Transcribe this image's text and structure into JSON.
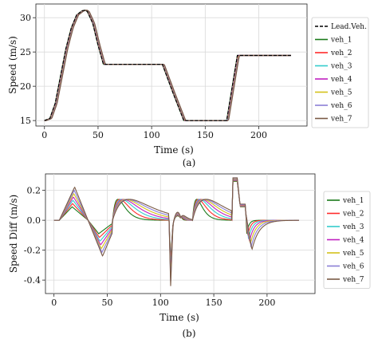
{
  "chart_data": [
    {
      "type": "line",
      "caption": "(a)",
      "xlabel": "Time (s)",
      "ylabel": "Speed (m/s)",
      "xlim": [
        -8,
        245
      ],
      "ylim": [
        14.2,
        32
      ],
      "xticks": [
        0,
        50,
        100,
        150,
        200
      ],
      "yticks": [
        15,
        20,
        25,
        30
      ],
      "grid": true,
      "legend_position": "right",
      "series": [
        {
          "name": "Lead.Veh.",
          "color": "#000000",
          "dash": true,
          "x": [
            0,
            5,
            10,
            15,
            20,
            25,
            30,
            35,
            38,
            40,
            45,
            50,
            55,
            60,
            110,
            120,
            130,
            170,
            180,
            230
          ],
          "y": [
            15,
            15.3,
            17.5,
            21.5,
            25.5,
            28.5,
            30.4,
            31.0,
            31.1,
            30.9,
            29.2,
            26.0,
            23.2,
            23.2,
            23.2,
            19.0,
            15.0,
            15.0,
            24.5,
            24.5
          ]
        },
        {
          "name": "veh_1",
          "color": "#1a7a1a",
          "shift": 0.0
        },
        {
          "name": "veh_2",
          "color": "#ff2a2a",
          "shift": 0.3
        },
        {
          "name": "veh_3",
          "color": "#33cccc",
          "shift": 0.6
        },
        {
          "name": "veh_4",
          "color": "#c020c0",
          "shift": 0.9
        },
        {
          "name": "veh_5",
          "color": "#d4c21a",
          "shift": 1.2
        },
        {
          "name": "veh_6",
          "color": "#8a7fd6",
          "shift": 1.5
        },
        {
          "name": "veh_7",
          "color": "#7a5a45",
          "shift": 1.8
        }
      ]
    },
    {
      "type": "line",
      "caption": "(b)",
      "xlabel": "Time (s)",
      "ylabel": "Speed Diff (m/s)",
      "xlim": [
        -8,
        245
      ],
      "ylim": [
        -0.49,
        0.31
      ],
      "xticks": [
        0,
        50,
        100,
        150,
        200
      ],
      "yticks": [
        -0.4,
        -0.2,
        0.0,
        0.2
      ],
      "grid": true,
      "legend_position": "right",
      "series": [
        {
          "name": "veh_1",
          "color": "#1a7a1a",
          "k": 0
        },
        {
          "name": "veh_2",
          "color": "#ff2a2a",
          "k": 1
        },
        {
          "name": "veh_3",
          "color": "#33cccc",
          "k": 2
        },
        {
          "name": "veh_4",
          "color": "#c020c0",
          "k": 3
        },
        {
          "name": "veh_5",
          "color": "#d4c21a",
          "k": 4
        },
        {
          "name": "veh_6",
          "color": "#8a7fd6",
          "k": 5
        },
        {
          "name": "veh_7",
          "color": "#7a5a45",
          "k": 6
        }
      ]
    }
  ]
}
